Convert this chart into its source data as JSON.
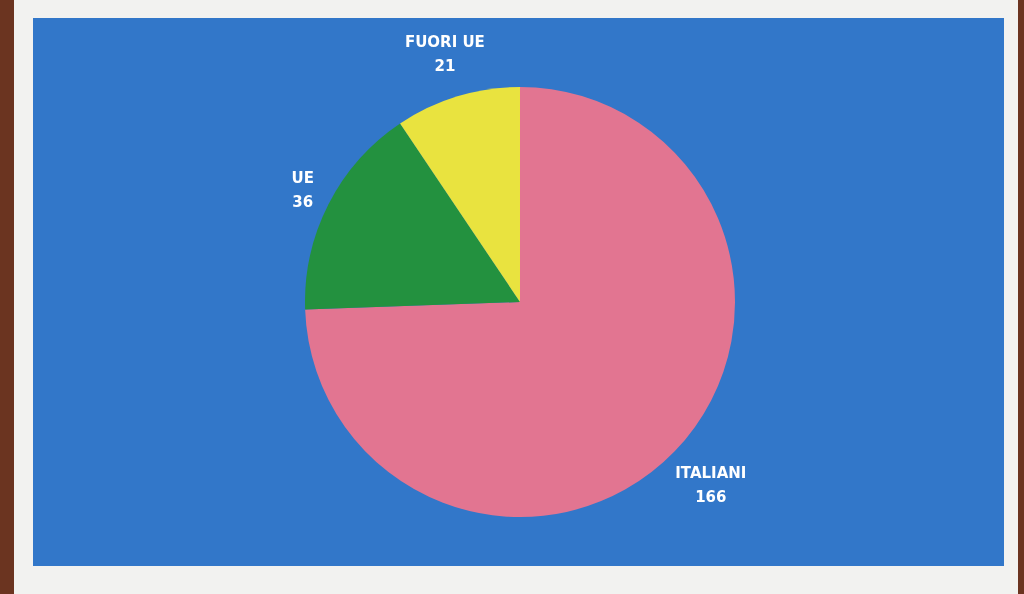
{
  "chart_data": {
    "type": "pie",
    "categories": [
      "ITALIANI",
      "UE",
      "FUORI UE"
    ],
    "values": [
      166,
      36,
      21
    ],
    "colors": [
      "#e27591",
      "#23913f",
      "#e9e33f"
    ],
    "data_labels": true
  }
}
